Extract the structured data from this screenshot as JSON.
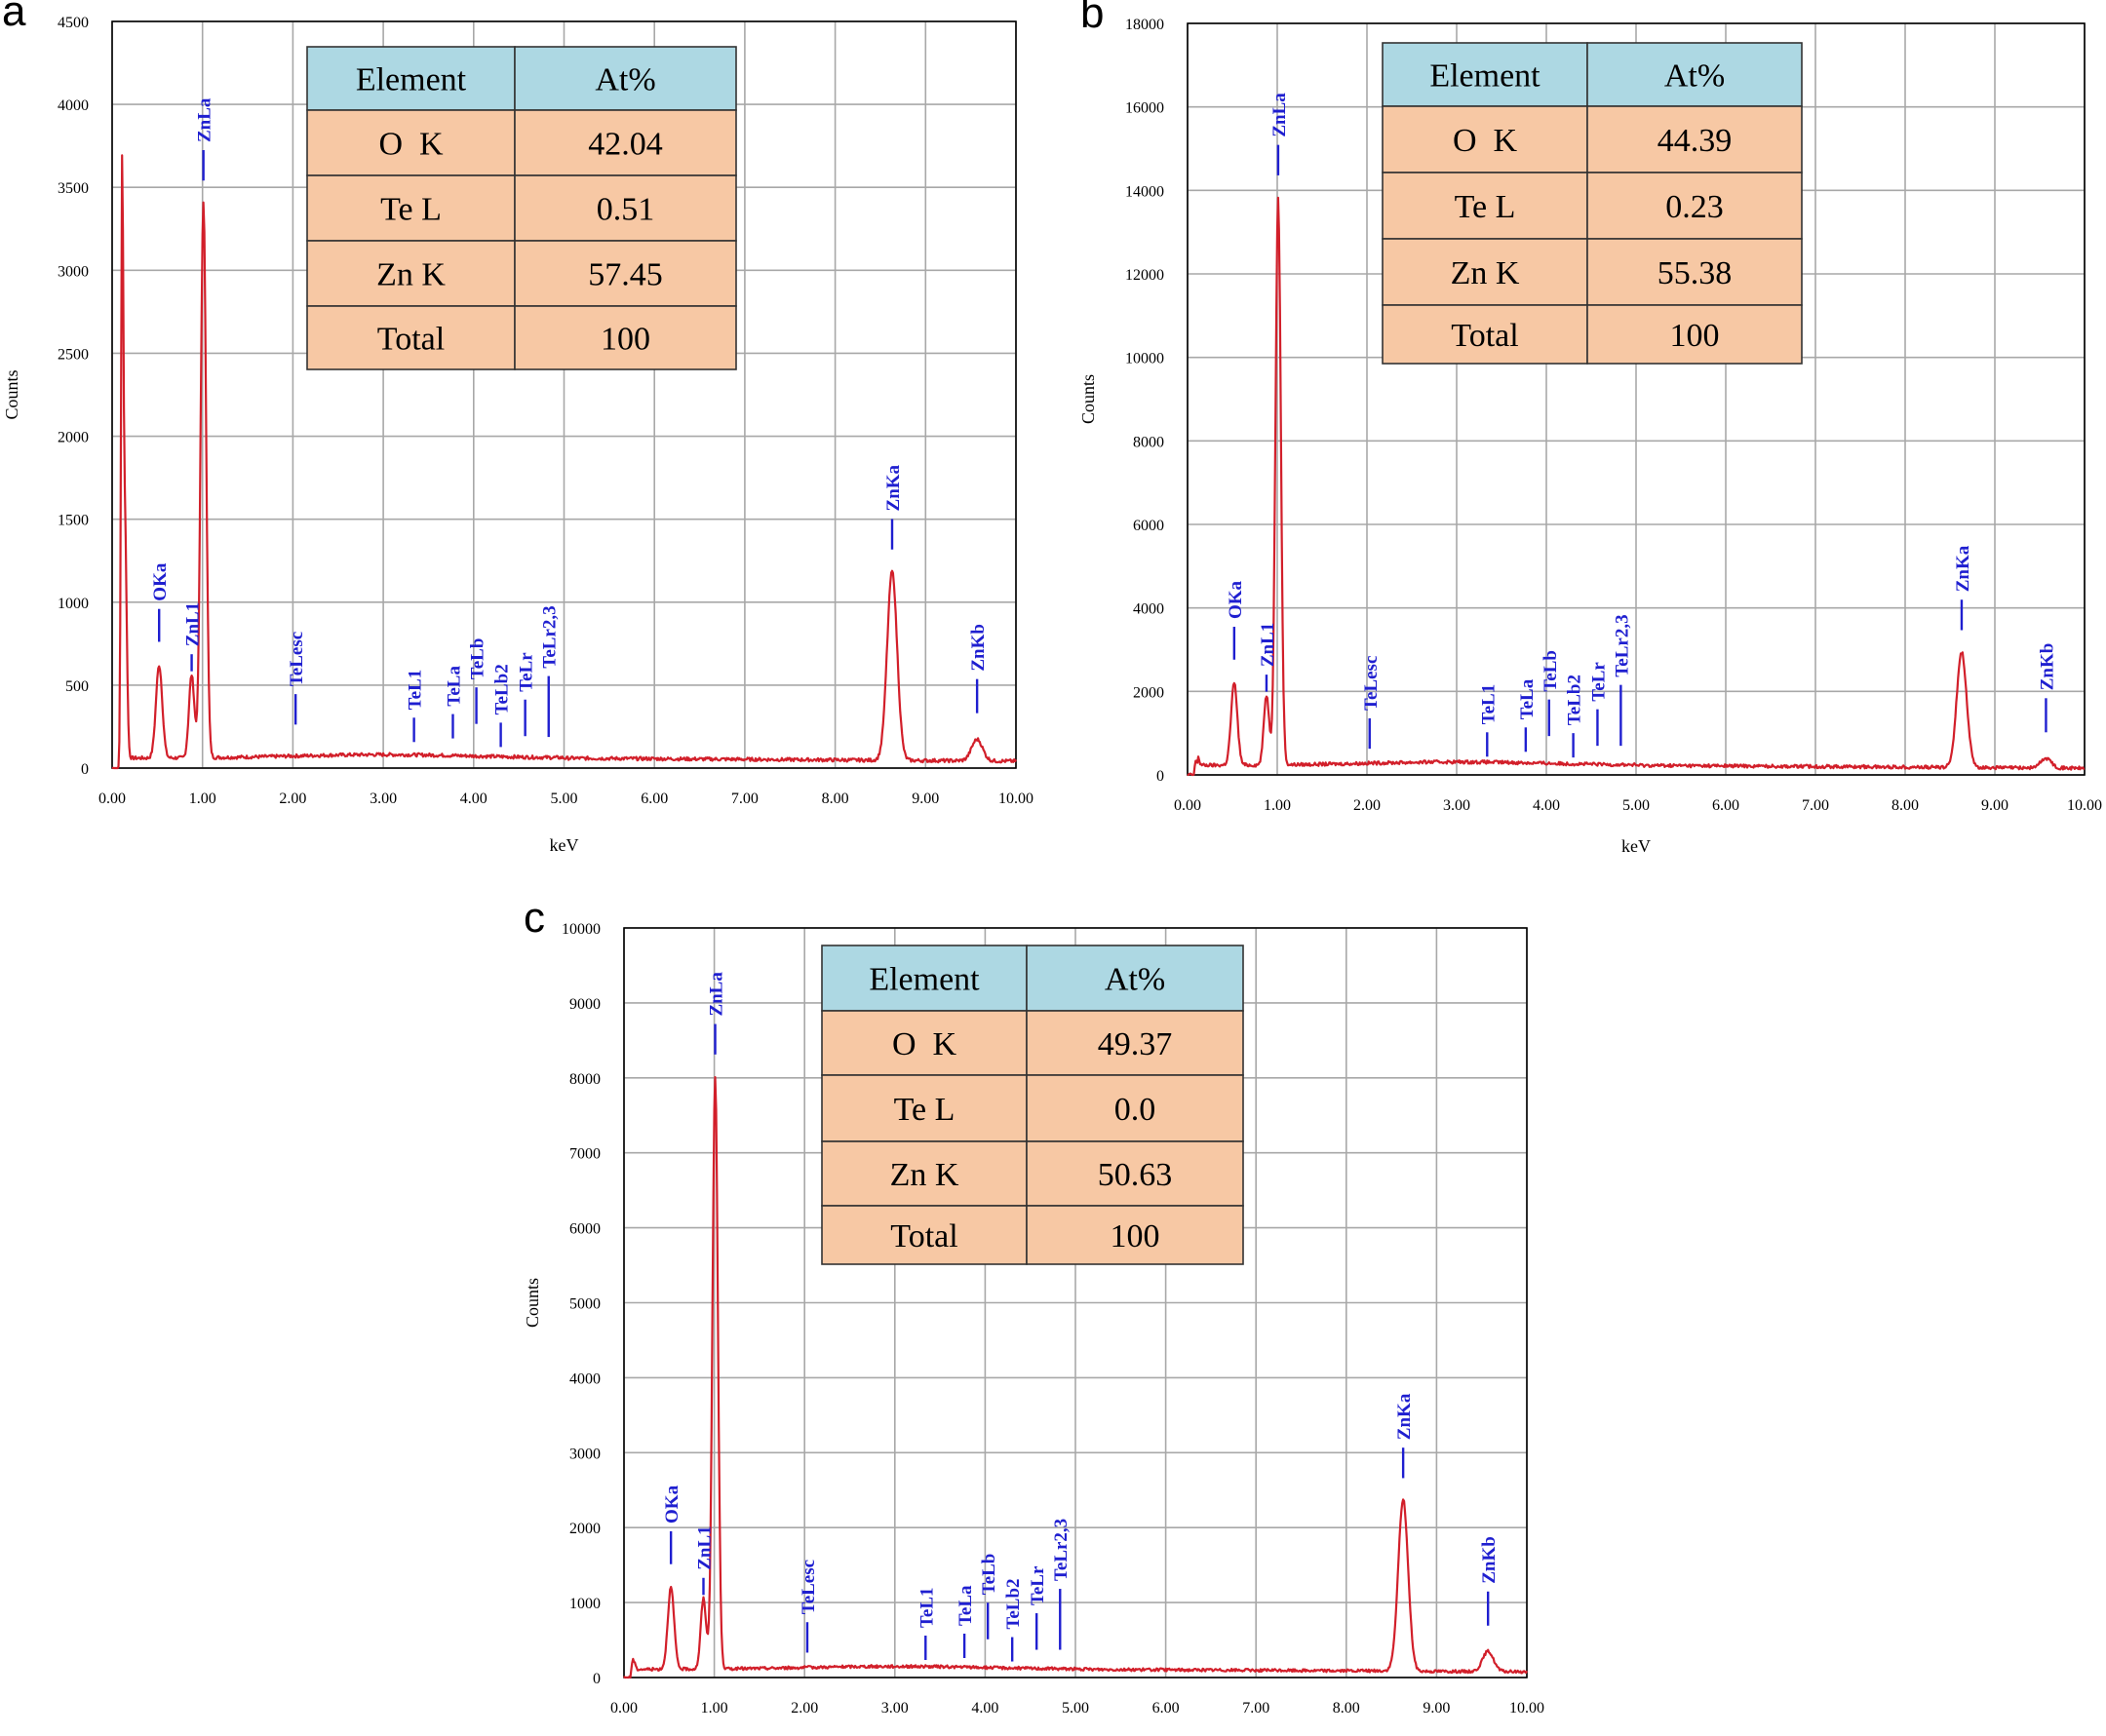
{
  "chart_data": [
    {
      "panel": "a",
      "type": "line",
      "xlabel": "keV",
      "ylabel": "Counts",
      "xlim": [
        0,
        10
      ],
      "ylim": [
        0,
        4500
      ],
      "xticks": [
        "0.00",
        "1.00",
        "2.00",
        "3.00",
        "4.00",
        "5.00",
        "6.00",
        "7.00",
        "8.00",
        "9.00",
        "10.00"
      ],
      "yticks": [
        "0",
        "500",
        "1000",
        "1500",
        "2000",
        "2500",
        "3000",
        "3500",
        "4000",
        "4500"
      ],
      "grid": true,
      "baseline": 60,
      "peaks": [
        {
          "label": "OKa",
          "x": 0.52,
          "y": 620
        },
        {
          "label": "ZnL1",
          "x": 0.88,
          "y": 560
        },
        {
          "label": "ZnLa",
          "x": 1.01,
          "y": 3400
        },
        {
          "label": "TeLesc",
          "x": 2.03,
          "y": 180
        },
        {
          "label": "TeL1",
          "x": 3.34,
          "y": 110
        },
        {
          "label": "TeLa",
          "x": 3.77,
          "y": 120
        },
        {
          "label": "TeLb",
          "x": 4.03,
          "y": 90
        },
        {
          "label": "TeLb2",
          "x": 4.3,
          "y": 80
        },
        {
          "label": "TeLr",
          "x": 4.57,
          "y": 75
        },
        {
          "label": "TeLr2,3",
          "x": 4.83,
          "y": 70
        },
        {
          "label": "ZnKa",
          "x": 8.63,
          "y": 1200
        },
        {
          "label": "ZnKb",
          "x": 9.57,
          "y": 190
        }
      ],
      "table": {
        "headers": [
          "Element",
          "At%"
        ],
        "rows": [
          [
            "O  K",
            "42.04"
          ],
          [
            "Te L",
            "0.51"
          ],
          [
            "Zn K",
            "57.45"
          ],
          [
            "Total",
            "100"
          ]
        ]
      }
    },
    {
      "panel": "b",
      "type": "line",
      "xlabel": "keV",
      "ylabel": "Counts",
      "xlim": [
        0,
        10
      ],
      "ylim": [
        0,
        18000
      ],
      "xticks": [
        "0.00",
        "1.00",
        "2.00",
        "3.00",
        "4.00",
        "5.00",
        "6.00",
        "7.00",
        "8.00",
        "9.00",
        "10.00"
      ],
      "yticks": [
        "0",
        "2000",
        "4000",
        "6000",
        "8000",
        "10000",
        "12000",
        "14000",
        "16000",
        "18000"
      ],
      "grid": true,
      "baseline": 230,
      "peaks": [
        {
          "label": "OKa",
          "x": 0.52,
          "y": 2200
        },
        {
          "label": "ZnL1",
          "x": 0.88,
          "y": 1900
        },
        {
          "label": "ZnLa",
          "x": 1.01,
          "y": 13800
        },
        {
          "label": "TeLesc",
          "x": 2.03,
          "y": 300
        },
        {
          "label": "TeL1",
          "x": 3.34,
          "y": 250
        },
        {
          "label": "TeLa",
          "x": 3.77,
          "y": 320
        },
        {
          "label": "TeLb",
          "x": 4.03,
          "y": 230
        },
        {
          "label": "TeLb2",
          "x": 4.3,
          "y": 220
        },
        {
          "label": "TeLr",
          "x": 4.57,
          "y": 200
        },
        {
          "label": "TeLr2,3",
          "x": 4.83,
          "y": 190
        },
        {
          "label": "ZnKa",
          "x": 8.63,
          "y": 3000
        },
        {
          "label": "ZnKb",
          "x": 9.57,
          "y": 460
        }
      ],
      "table": {
        "headers": [
          "Element",
          "At%"
        ],
        "rows": [
          [
            "O  K",
            "44.39"
          ],
          [
            "Te L",
            "0.23"
          ],
          [
            "Zn K",
            "55.38"
          ],
          [
            "Total",
            "100"
          ]
        ]
      }
    },
    {
      "panel": "c",
      "type": "line",
      "xlabel": "keV",
      "ylabel": "Counts",
      "xlim": [
        0,
        10
      ],
      "ylim": [
        0,
        10000
      ],
      "xticks": [
        "0.00",
        "1.00",
        "2.00",
        "3.00",
        "4.00",
        "5.00",
        "6.00",
        "7.00",
        "8.00",
        "9.00",
        "10.00"
      ],
      "yticks": [
        "0",
        "1000",
        "2000",
        "3000",
        "4000",
        "5000",
        "6000",
        "7000",
        "8000",
        "9000",
        "10000"
      ],
      "grid": true,
      "baseline": 110,
      "peaks": [
        {
          "label": "OKa",
          "x": 0.52,
          "y": 1200
        },
        {
          "label": "ZnL1",
          "x": 0.88,
          "y": 1050
        },
        {
          "label": "ZnLa",
          "x": 1.01,
          "y": 8000
        },
        {
          "label": "TeLesc",
          "x": 2.03,
          "y": 150
        },
        {
          "label": "TeL1",
          "x": 3.34,
          "y": 130
        },
        {
          "label": "TeLa",
          "x": 3.77,
          "y": 130
        },
        {
          "label": "TeLb",
          "x": 4.03,
          "y": 120
        },
        {
          "label": "TeLb2",
          "x": 4.3,
          "y": 110
        },
        {
          "label": "TeLr",
          "x": 4.57,
          "y": 100
        },
        {
          "label": "TeLr2,3",
          "x": 4.83,
          "y": 95
        },
        {
          "label": "ZnKa",
          "x": 8.63,
          "y": 2400
        },
        {
          "label": "ZnKb",
          "x": 9.57,
          "y": 380
        }
      ],
      "table": {
        "headers": [
          "Element",
          "At%"
        ],
        "rows": [
          [
            "O  K",
            "49.37"
          ],
          [
            "Te L",
            "0.0"
          ],
          [
            "Zn K",
            "50.63"
          ],
          [
            "Total",
            "100"
          ]
        ]
      }
    }
  ]
}
